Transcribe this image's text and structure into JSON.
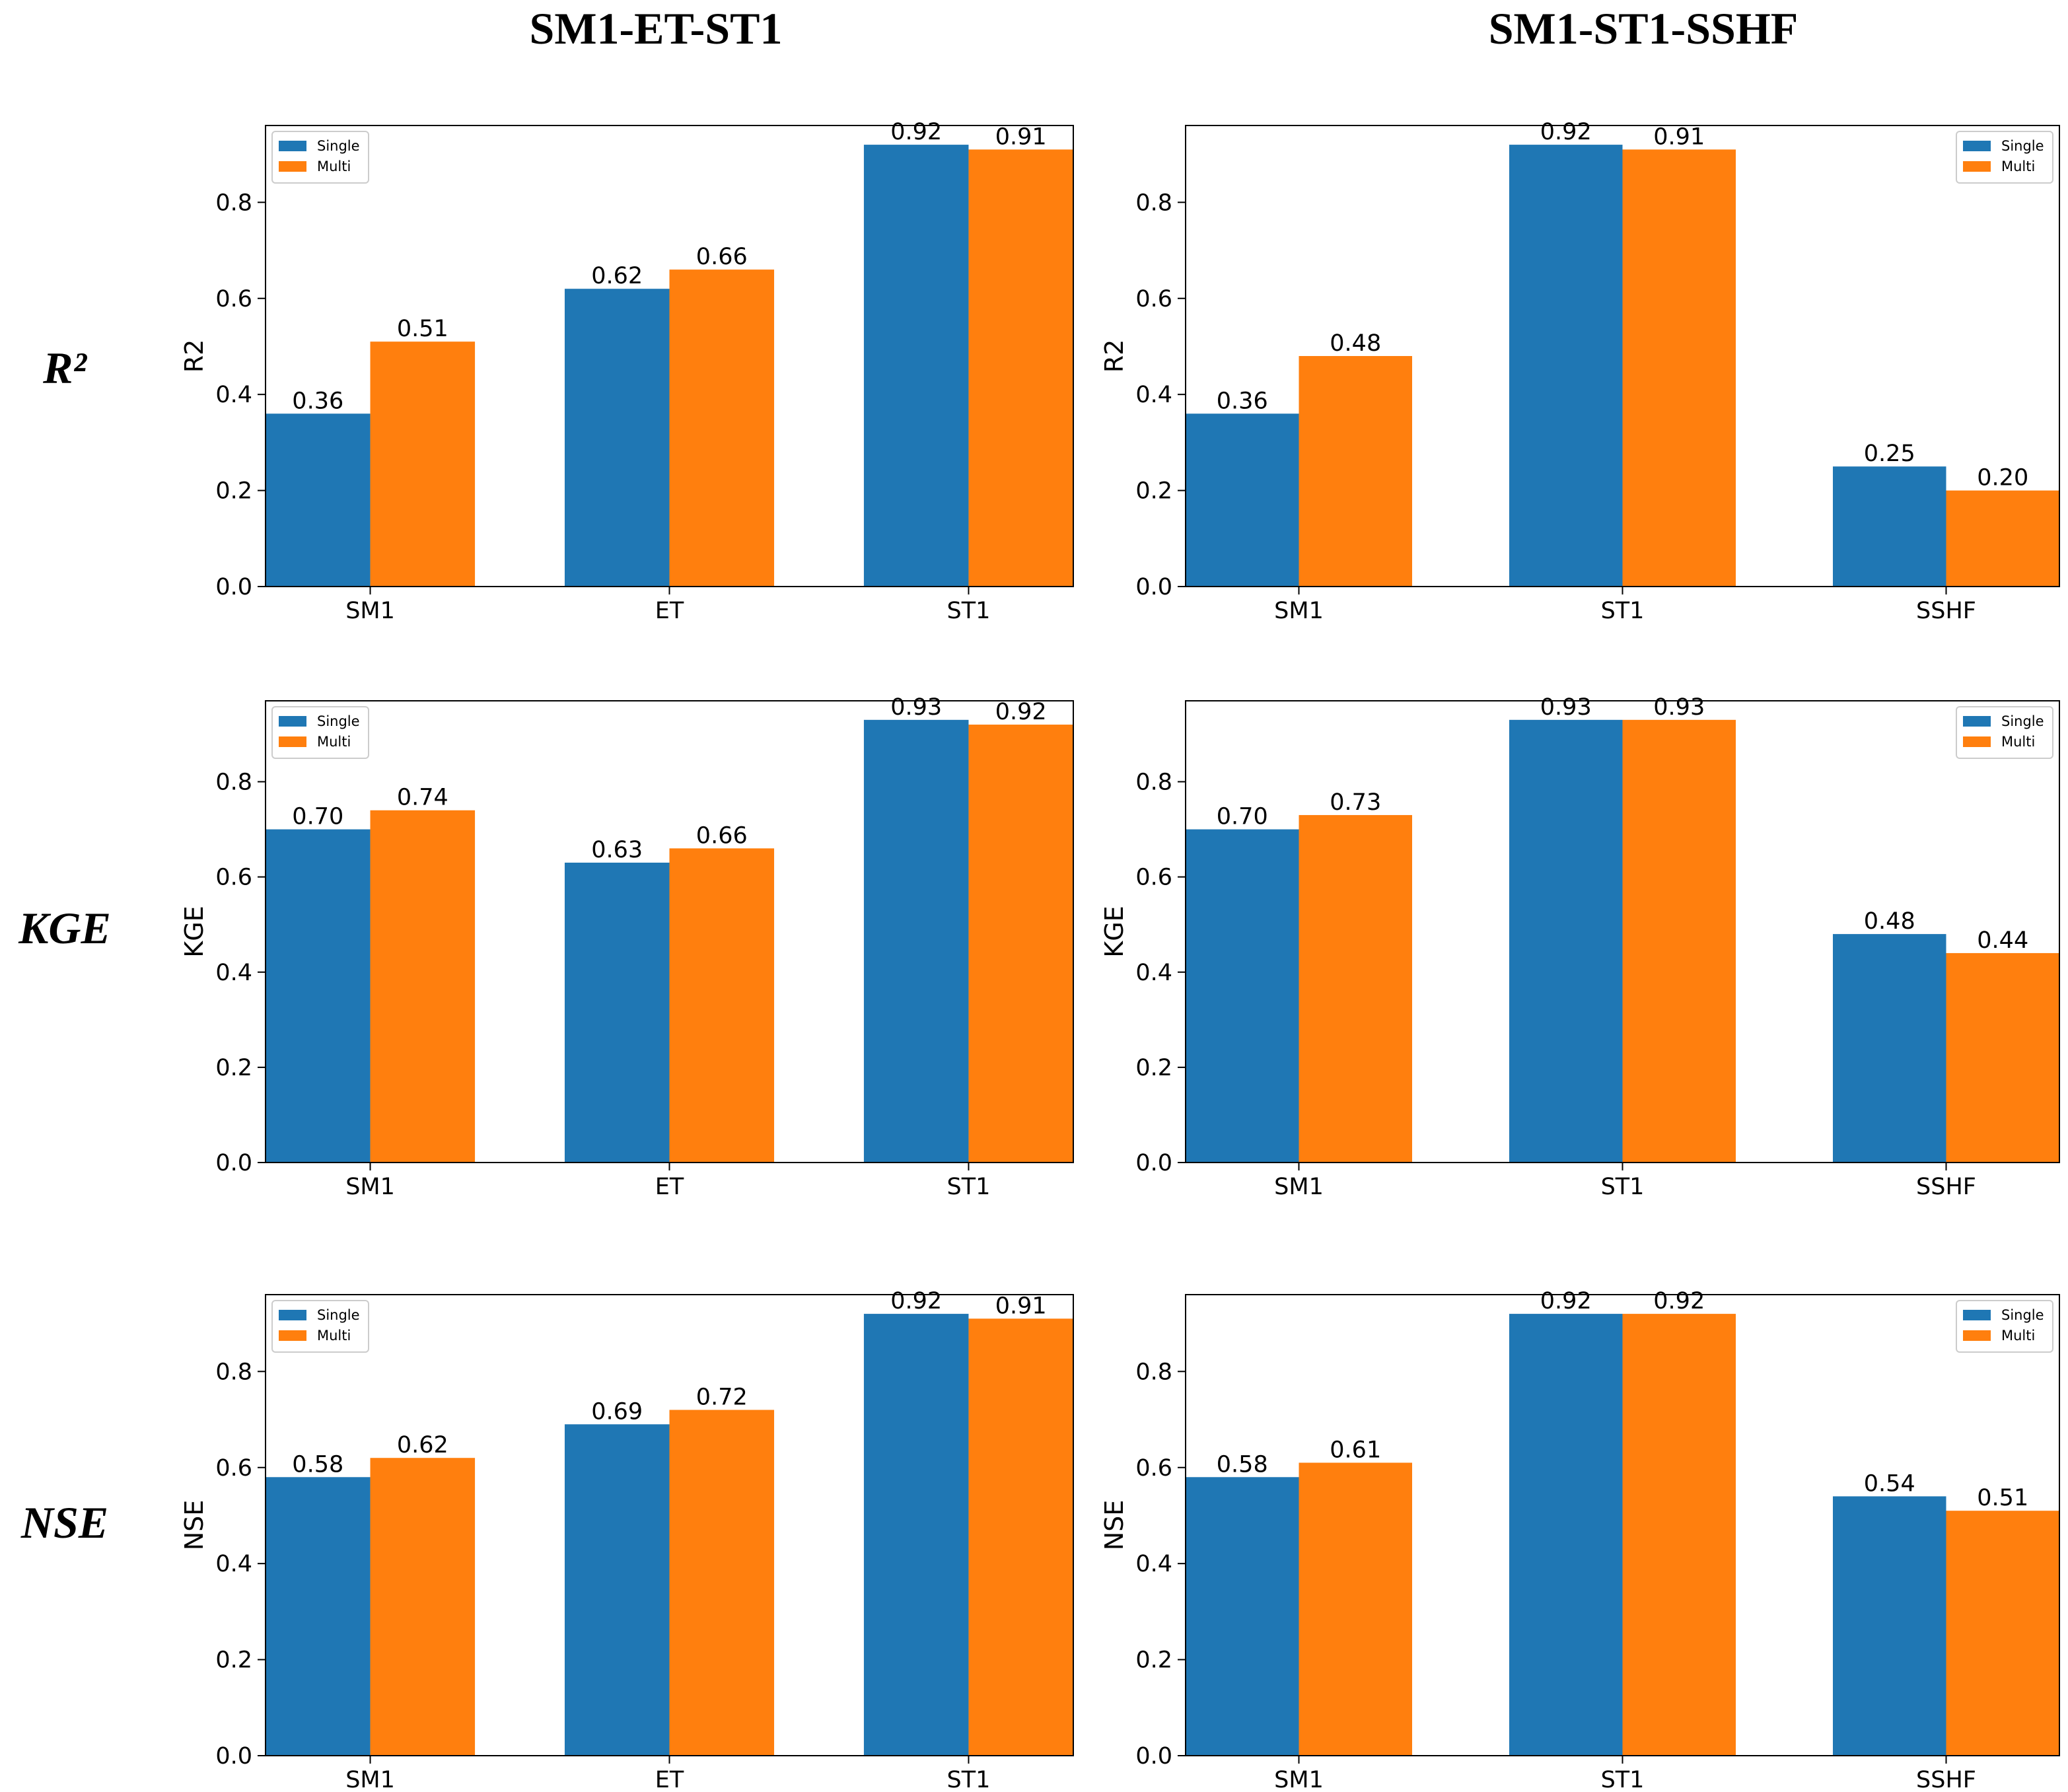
{
  "column_titles": [
    "SM1-ET-ST1",
    "SM1-ST1-SSHF"
  ],
  "row_labels": [
    "R²",
    "KGE",
    "NSE"
  ],
  "colors": {
    "single": "#1f77b4",
    "multi": "#ff7f0e"
  },
  "chart_data": [
    {
      "type": "bar",
      "title": "",
      "xlabel": "",
      "ylabel": "R2",
      "ylim": [
        0,
        0.96
      ],
      "yticks": [
        "0.0",
        "0.2",
        "0.4",
        "0.6",
        "0.8"
      ],
      "legend_position": "upper-left",
      "categories": [
        "SM1",
        "ET",
        "ST1"
      ],
      "series": [
        {
          "name": "Single",
          "values": [
            0.36,
            0.62,
            0.92
          ]
        },
        {
          "name": "Multi",
          "values": [
            0.51,
            0.66,
            0.91
          ]
        }
      ]
    },
    {
      "type": "bar",
      "title": "",
      "xlabel": "",
      "ylabel": "R2",
      "ylim": [
        0,
        0.96
      ],
      "yticks": [
        "0.0",
        "0.2",
        "0.4",
        "0.6",
        "0.8"
      ],
      "legend_position": "upper-right",
      "categories": [
        "SM1",
        "ST1",
        "SSHF"
      ],
      "series": [
        {
          "name": "Single",
          "values": [
            0.36,
            0.92,
            0.25
          ]
        },
        {
          "name": "Multi",
          "values": [
            0.48,
            0.91,
            0.2
          ]
        }
      ]
    },
    {
      "type": "bar",
      "title": "",
      "xlabel": "",
      "ylabel": "KGE",
      "ylim": [
        0,
        0.97
      ],
      "yticks": [
        "0.0",
        "0.2",
        "0.4",
        "0.6",
        "0.8"
      ],
      "legend_position": "upper-left",
      "categories": [
        "SM1",
        "ET",
        "ST1"
      ],
      "series": [
        {
          "name": "Single",
          "values": [
            0.7,
            0.63,
            0.93
          ]
        },
        {
          "name": "Multi",
          "values": [
            0.74,
            0.66,
            0.92
          ]
        }
      ]
    },
    {
      "type": "bar",
      "title": "",
      "xlabel": "",
      "ylabel": "KGE",
      "ylim": [
        0,
        0.97
      ],
      "yticks": [
        "0.0",
        "0.2",
        "0.4",
        "0.6",
        "0.8"
      ],
      "legend_position": "upper-right",
      "categories": [
        "SM1",
        "ST1",
        "SSHF"
      ],
      "series": [
        {
          "name": "Single",
          "values": [
            0.7,
            0.93,
            0.48
          ]
        },
        {
          "name": "Multi",
          "values": [
            0.73,
            0.93,
            0.44
          ]
        }
      ]
    },
    {
      "type": "bar",
      "title": "",
      "xlabel": "",
      "ylabel": "NSE",
      "ylim": [
        0,
        0.96
      ],
      "yticks": [
        "0.0",
        "0.2",
        "0.4",
        "0.6",
        "0.8"
      ],
      "legend_position": "upper-left",
      "categories": [
        "SM1",
        "ET",
        "ST1"
      ],
      "series": [
        {
          "name": "Single",
          "values": [
            0.58,
            0.69,
            0.92
          ]
        },
        {
          "name": "Multi",
          "values": [
            0.62,
            0.72,
            0.91
          ]
        }
      ]
    },
    {
      "type": "bar",
      "title": "",
      "xlabel": "",
      "ylabel": "NSE",
      "ylim": [
        0,
        0.96
      ],
      "yticks": [
        "0.0",
        "0.2",
        "0.4",
        "0.6",
        "0.8"
      ],
      "legend_position": "upper-right",
      "categories": [
        "SM1",
        "ST1",
        "SSHF"
      ],
      "series": [
        {
          "name": "Single",
          "values": [
            0.58,
            0.92,
            0.54
          ]
        },
        {
          "name": "Multi",
          "values": [
            0.61,
            0.92,
            0.51
          ]
        }
      ]
    }
  ]
}
